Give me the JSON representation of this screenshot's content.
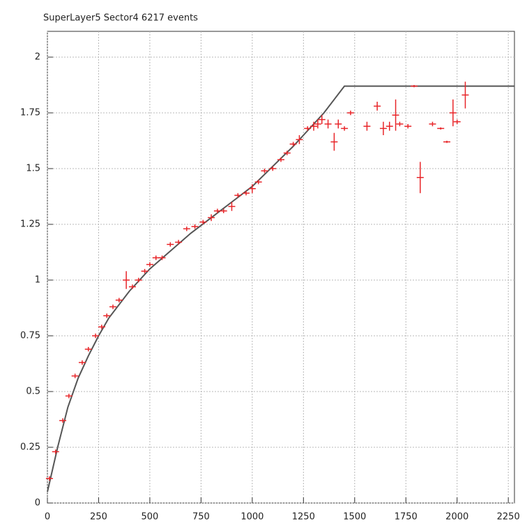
{
  "chart_data": {
    "type": "scatter",
    "title": "SuperLayer5  Sector4      6217 events",
    "xlim": [
      0,
      2280
    ],
    "ylim": [
      0,
      2.1
    ],
    "xticks": [
      0,
      250,
      500,
      750,
      1000,
      1250,
      1500,
      1750,
      2000,
      2250
    ],
    "yticks": [
      0,
      0.25,
      0.5,
      0.75,
      1,
      1.25,
      1.5,
      1.75,
      2
    ],
    "grid": true,
    "points": {
      "color": "#e8262a",
      "x": [
        10,
        40,
        75,
        105,
        135,
        170,
        200,
        235,
        265,
        290,
        320,
        350,
        385,
        415,
        445,
        475,
        500,
        530,
        560,
        600,
        640,
        680,
        720,
        760,
        800,
        830,
        860,
        900,
        930,
        970,
        1000,
        1030,
        1060,
        1100,
        1140,
        1170,
        1200,
        1230,
        1270,
        1300,
        1320,
        1340,
        1370,
        1400,
        1420,
        1450,
        1480,
        1560,
        1610,
        1640,
        1670,
        1700,
        1720,
        1760,
        1790,
        1820,
        1880,
        1920,
        1950,
        1980,
        2000,
        2040
      ],
      "values": [
        0.11,
        0.23,
        0.37,
        0.48,
        0.57,
        0.63,
        0.69,
        0.75,
        0.79,
        0.84,
        0.88,
        0.91,
        1.0,
        0.97,
        1.0,
        1.04,
        1.07,
        1.1,
        1.1,
        1.16,
        1.17,
        1.23,
        1.24,
        1.26,
        1.28,
        1.31,
        1.31,
        1.33,
        1.38,
        1.39,
        1.41,
        1.44,
        1.49,
        1.5,
        1.54,
        1.57,
        1.61,
        1.63,
        1.68,
        1.69,
        1.7,
        1.72,
        1.7,
        1.62,
        1.7,
        1.68,
        1.75,
        1.69,
        1.78,
        1.68,
        1.69,
        1.74,
        1.7,
        1.69,
        1.87,
        1.46,
        1.7,
        1.68,
        1.62,
        1.75,
        1.71,
        1.83
      ],
      "errors": [
        0.01,
        0.01,
        0.01,
        0.01,
        0.01,
        0.01,
        0.01,
        0.01,
        0.01,
        0.01,
        0.01,
        0.01,
        0.04,
        0.01,
        0.01,
        0.01,
        0.01,
        0.01,
        0.01,
        0.01,
        0.01,
        0.01,
        0.01,
        0.01,
        0.015,
        0.01,
        0.01,
        0.02,
        0.01,
        0.01,
        0.02,
        0.01,
        0.01,
        0.01,
        0.01,
        0.01,
        0.01,
        0.02,
        0.01,
        0.02,
        0.02,
        0.02,
        0.02,
        0.04,
        0.02,
        0.01,
        0.01,
        0.02,
        0.02,
        0.03,
        0.02,
        0.07,
        0.01,
        0.01,
        0.005,
        0.07,
        0.01,
        0.005,
        0.005,
        0.06,
        0.01,
        0.06
      ]
    },
    "fit": {
      "color": "#555555",
      "x": [
        0,
        20,
        50,
        100,
        150,
        200,
        250,
        300,
        400,
        500,
        600,
        700,
        800,
        900,
        1000,
        1100,
        1200,
        1300,
        1350,
        1400,
        1450,
        2280
      ],
      "values": [
        0.05,
        0.13,
        0.25,
        0.43,
        0.56,
        0.66,
        0.75,
        0.83,
        0.95,
        1.05,
        1.13,
        1.21,
        1.28,
        1.35,
        1.42,
        1.51,
        1.6,
        1.7,
        1.75,
        1.81,
        1.87,
        1.87
      ]
    }
  }
}
